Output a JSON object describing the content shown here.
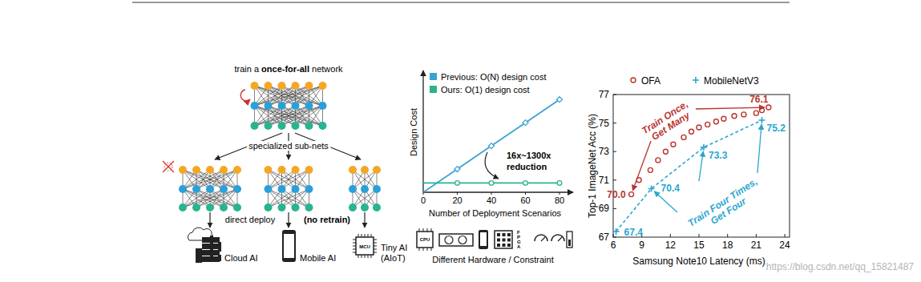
{
  "diagram": {
    "title": {
      "prefix": "train a ",
      "bold": "once-for-all",
      "suffix": " network"
    },
    "branch_label": "specialized sub-nets",
    "deploy": {
      "text": "direct deploy",
      "note": "(no retrain)"
    },
    "targets": [
      {
        "lines": [
          "Cloud AI"
        ]
      },
      {
        "lines": [
          "Mobile AI"
        ]
      },
      {
        "lines": [
          "Tiny AI",
          "(AIoT)"
        ],
        "chip": "MCU"
      }
    ]
  },
  "chart_data": [
    {
      "type": "line",
      "legend": "top-left",
      "tick_labels": "x",
      "x_label": "Number of Deployment Scenarios",
      "y_label": "Design Cost",
      "xlim": [
        0,
        88
      ],
      "ylim": [
        0,
        105
      ],
      "xticks": [
        0,
        20,
        40,
        60,
        80
      ],
      "x": [
        0,
        20,
        40,
        60,
        80
      ],
      "series": [
        {
          "name": "Previous: O(N) design cost",
          "color": "#3ba3d0",
          "marker": "diamond",
          "values": [
            0,
            20,
            40,
            60,
            80
          ]
        },
        {
          "name": "Ours: O(1) design cost",
          "color": "#2bb38f",
          "marker": "circle",
          "values": [
            8,
            8,
            8,
            8,
            8
          ]
        }
      ],
      "annotations": [
        {
          "lines": [
            "16x~1300x",
            "reduction"
          ]
        }
      ],
      "caption": "Different Hardware / Constraint",
      "icon_labels": [
        "CPU",
        "F",
        "P",
        "G",
        "A"
      ]
    },
    {
      "type": "line",
      "legend": "top",
      "x_label": "Samsung Note10 Latency (ms)",
      "y_label": "Top-1 ImageNet Acc (%)",
      "xlim": [
        6,
        24.5
      ],
      "ylim": [
        67,
        77
      ],
      "xticks": [
        6,
        9,
        12,
        15,
        18,
        21,
        24
      ],
      "yticks": [
        67,
        69,
        71,
        73,
        75,
        77
      ],
      "grid": false,
      "data_labels": true,
      "series": [
        {
          "name": "OFA",
          "color": "#b8352f",
          "marker": "circle",
          "line_style": "none",
          "x": [
            7.9,
            8.7,
            9.9,
            10.7,
            11.5,
            12.3,
            13.4,
            14.2,
            15.0,
            15.9,
            16.8,
            17.6,
            18.7,
            19.7,
            21.0,
            21.6,
            22.3
          ],
          "values": [
            70.0,
            71.0,
            71.7,
            72.4,
            73.0,
            73.5,
            74.0,
            74.4,
            74.7,
            74.9,
            75.1,
            75.3,
            75.5,
            75.6,
            75.7,
            75.9,
            76.1
          ],
          "value_labels": [
            "70.0",
            null,
            null,
            null,
            null,
            null,
            null,
            null,
            null,
            null,
            null,
            null,
            null,
            null,
            null,
            null,
            "76.1"
          ]
        },
        {
          "name": "MobileNetV3",
          "color": "#2aa6cf",
          "marker": "plus",
          "line_style": "dashed",
          "x": [
            6.3,
            10.0,
            15.5,
            21.6
          ],
          "values": [
            67.4,
            70.4,
            73.3,
            75.2
          ],
          "value_labels": [
            "67.4",
            "70.4",
            "73.3",
            "75.2"
          ]
        }
      ],
      "annotations": [
        {
          "lines": [
            "Train Once,",
            "Get Many"
          ],
          "color": "#b8352f"
        },
        {
          "lines": [
            "Train Four Times,",
            "Get Four"
          ],
          "color": "#2aa6cf"
        }
      ]
    }
  ],
  "watermark": "https://blog.csdn.net/qq_15821487"
}
